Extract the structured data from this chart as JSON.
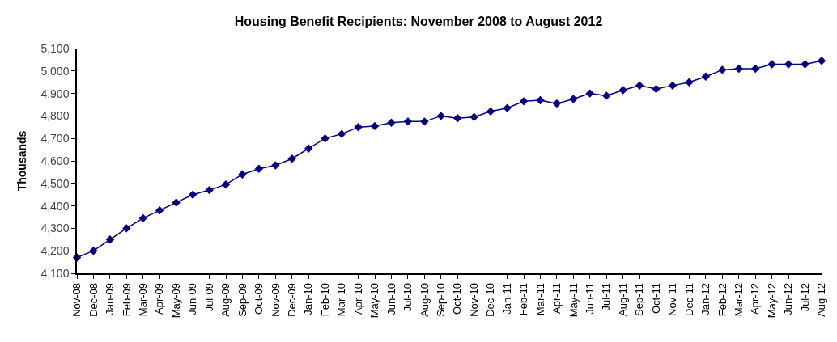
{
  "chart_data": {
    "type": "line",
    "title": "Housing Benefit Recipients: November 2008 to August 2012",
    "ylabel": "Thousands",
    "categories": [
      "Nov-08",
      "Dec-08",
      "Jan-09",
      "Feb-09",
      "Mar-09",
      "Apr-09",
      "May-09",
      "Jun-09",
      "Jul-09",
      "Aug-09",
      "Sep-09",
      "Oct-09",
      "Nov-09",
      "Dec-09",
      "Jan-10",
      "Feb-10",
      "Mar-10",
      "Apr-10",
      "May-10",
      "Jun-10",
      "Jul-10",
      "Aug-10",
      "Sep-10",
      "Oct-10",
      "Nov-10",
      "Dec-10",
      "Jan-11",
      "Feb-11",
      "Mar-11",
      "Apr-11",
      "May-11",
      "Jun-11",
      "Jul-11",
      "Aug-11",
      "Sep-11",
      "Oct-11",
      "Nov-11",
      "Dec-11",
      "Jan-12",
      "Feb-12",
      "Mar-12",
      "Apr-12",
      "May-12",
      "Jun-12",
      "Jul-12",
      "Aug-12"
    ],
    "series": [
      {
        "color": "#000080",
        "values": [
          4170,
          4200,
          4250,
          4300,
          4345,
          4380,
          4415,
          4450,
          4470,
          4495,
          4540,
          4565,
          4580,
          4610,
          4655,
          4700,
          4720,
          4750,
          4755,
          4770,
          4775,
          4775,
          4800,
          4790,
          4795,
          4820,
          4835,
          4865,
          4870,
          4855,
          4875,
          4900,
          4890,
          4915,
          4935,
          4920,
          4935,
          4950,
          4975,
          5005,
          5010,
          5010,
          5030,
          5030,
          5030,
          5045
        ]
      }
    ],
    "ylim": [
      4100,
      5100
    ],
    "yticks": [
      {
        "value": 4100,
        "label": "4,100"
      },
      {
        "value": 4200,
        "label": "4,200"
      },
      {
        "value": 4300,
        "label": "4,300"
      },
      {
        "value": 4400,
        "label": "4,400"
      },
      {
        "value": 4500,
        "label": "4,500"
      },
      {
        "value": 4600,
        "label": "4,600"
      },
      {
        "value": 4700,
        "label": "4,700"
      },
      {
        "value": 4800,
        "label": "4,800"
      },
      {
        "value": 4900,
        "label": "4,900"
      },
      {
        "value": 5000,
        "label": "5,000"
      },
      {
        "value": 5100,
        "label": "5,100"
      }
    ],
    "legend": false,
    "marker": "diamond",
    "line_style": "solid"
  }
}
